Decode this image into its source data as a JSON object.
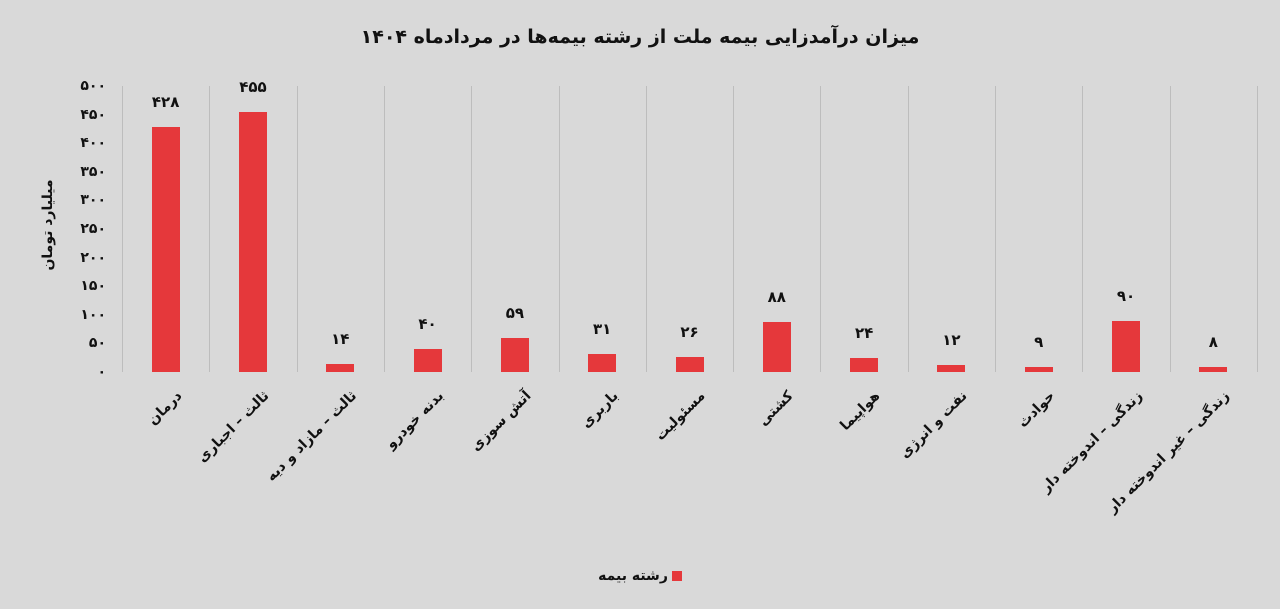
{
  "chart_data": {
    "type": "bar",
    "title": "میزان درآمدزایی بیمه ملت از رشته بیمه‌ها در مردادماه ۱۴۰۴",
    "ylabel": "میلیارد تومان",
    "xlabel": "",
    "ylim": [
      0,
      500
    ],
    "yticks": [
      0,
      50,
      100,
      150,
      200,
      250,
      300,
      350,
      400,
      450,
      500
    ],
    "ytick_labels": [
      "۰",
      "۵۰",
      "۱۰۰",
      "۱۵۰",
      "۲۰۰",
      "۲۵۰",
      "۳۰۰",
      "۳۵۰",
      "۴۰۰",
      "۴۵۰",
      "۵۰۰"
    ],
    "grid": "vertical category separators",
    "legend_position": "bottom",
    "categories": [
      "درمان",
      "ثالث – اجباری",
      "ثالث – مازاد و دیه",
      "بدنه خودرو",
      "آتش سوزی",
      "باربری",
      "مسئولیت",
      "کشتی",
      "هواپیما",
      "نفت و انرژی",
      "حوادث",
      "زندگی – اندوخته دار",
      "زندگی – غیر اندوخته دار"
    ],
    "series": [
      {
        "name": "رشته بیمه",
        "color": "#e5383b",
        "values": [
          428,
          455,
          14,
          40,
          59,
          31,
          26,
          88,
          24,
          12,
          9,
          90,
          8
        ],
        "value_labels": [
          "۴۲۸",
          "۴۵۵",
          "۱۴",
          "۴۰",
          "۵۹",
          "۳۱",
          "۲۶",
          "۸۸",
          "۲۴",
          "۱۲",
          "۹",
          "۹۰",
          "۸"
        ]
      }
    ]
  },
  "legend": {
    "label": "رشته بیمه"
  }
}
